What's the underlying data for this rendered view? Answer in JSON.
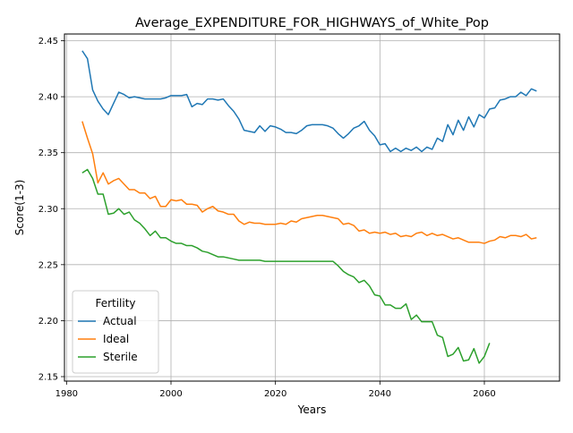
{
  "chart_data": {
    "type": "line",
    "title": "Average_EXPENDITURE_FOR_HIGHWAYS_of_White_Pop",
    "xlabel": "Years",
    "ylabel": "Score(1-3)",
    "xlim": [
      1979.6,
      2074.4
    ],
    "ylim": [
      2.146,
      2.456
    ],
    "xticks": [
      1980,
      2000,
      2020,
      2040,
      2060
    ],
    "yticks": [
      2.15,
      2.2,
      2.25,
      2.3,
      2.35,
      2.4,
      2.45
    ],
    "xtick_labels": [
      "1980",
      "2000",
      "2020",
      "2040",
      "2060"
    ],
    "ytick_labels": [
      "2.15",
      "2.20",
      "2.25",
      "2.30",
      "2.35",
      "2.40",
      "2.45"
    ],
    "grid": true,
    "legend": {
      "title": "Fertility",
      "placement": "lower-left"
    },
    "series": [
      {
        "name": "Actual",
        "color": "#1f77b4",
        "x": [
          1983,
          1984,
          1985,
          1986,
          1987,
          1988,
          1989,
          1990,
          1991,
          1992,
          1993,
          1994,
          1995,
          1996,
          1997,
          1998,
          1999,
          2000,
          2001,
          2002,
          2003,
          2004,
          2005,
          2006,
          2007,
          2008,
          2009,
          2010,
          2011,
          2012,
          2013,
          2014,
          2015,
          2016,
          2017,
          2018,
          2019,
          2020,
          2021,
          2022,
          2023,
          2024,
          2025,
          2026,
          2027,
          2028,
          2029,
          2030,
          2031,
          2032,
          2033,
          2034,
          2035,
          2036,
          2037,
          2038,
          2039,
          2040,
          2041,
          2042,
          2043,
          2044,
          2045,
          2046,
          2047,
          2048,
          2049,
          2050,
          2051,
          2052,
          2053,
          2054,
          2055,
          2056,
          2057,
          2058,
          2059,
          2060,
          2061,
          2062,
          2063,
          2064,
          2065,
          2066,
          2067,
          2068,
          2069,
          2070
        ],
        "values": [
          2.441,
          2.434,
          2.406,
          2.396,
          2.389,
          2.384,
          2.394,
          2.404,
          2.402,
          2.399,
          2.4,
          2.399,
          2.398,
          2.398,
          2.398,
          2.398,
          2.399,
          2.401,
          2.401,
          2.401,
          2.402,
          2.391,
          2.394,
          2.393,
          2.398,
          2.398,
          2.397,
          2.398,
          2.392,
          2.387,
          2.38,
          2.37,
          2.369,
          2.368,
          2.374,
          2.369,
          2.374,
          2.373,
          2.371,
          2.368,
          2.368,
          2.367,
          2.37,
          2.374,
          2.375,
          2.375,
          2.375,
          2.374,
          2.372,
          2.367,
          2.363,
          2.367,
          2.372,
          2.374,
          2.378,
          2.37,
          2.365,
          2.357,
          2.358,
          2.351,
          2.354,
          2.351,
          2.354,
          2.352,
          2.355,
          2.351,
          2.355,
          2.353,
          2.363,
          2.36,
          2.375,
          2.366,
          2.379,
          2.37,
          2.382,
          2.373,
          2.384,
          2.381,
          2.389,
          2.39,
          2.397,
          2.398,
          2.4,
          2.4,
          2.404,
          2.401,
          2.407,
          2.405
        ]
      },
      {
        "name": "Ideal",
        "color": "#ff7f0e",
        "x": [
          1983,
          1984,
          1985,
          1986,
          1987,
          1988,
          1989,
          1990,
          1991,
          1992,
          1993,
          1994,
          1995,
          1996,
          1997,
          1998,
          1999,
          2000,
          2001,
          2002,
          2003,
          2004,
          2005,
          2006,
          2007,
          2008,
          2009,
          2010,
          2011,
          2012,
          2013,
          2014,
          2015,
          2016,
          2017,
          2018,
          2019,
          2020,
          2021,
          2022,
          2023,
          2024,
          2025,
          2026,
          2027,
          2028,
          2029,
          2030,
          2031,
          2032,
          2033,
          2034,
          2035,
          2036,
          2037,
          2038,
          2039,
          2040,
          2041,
          2042,
          2043,
          2044,
          2045,
          2046,
          2047,
          2048,
          2049,
          2050,
          2051,
          2052,
          2053,
          2054,
          2055,
          2056,
          2057,
          2058,
          2059,
          2060,
          2061,
          2062,
          2063,
          2064,
          2065,
          2066,
          2067,
          2068,
          2069,
          2070
        ],
        "values": [
          2.378,
          2.363,
          2.349,
          2.323,
          2.332,
          2.322,
          2.325,
          2.327,
          2.322,
          2.317,
          2.317,
          2.314,
          2.314,
          2.309,
          2.311,
          2.302,
          2.302,
          2.308,
          2.307,
          2.308,
          2.304,
          2.304,
          2.303,
          2.297,
          2.3,
          2.302,
          2.298,
          2.297,
          2.295,
          2.295,
          2.289,
          2.286,
          2.288,
          2.287,
          2.287,
          2.286,
          2.286,
          2.286,
          2.287,
          2.286,
          2.289,
          2.288,
          2.291,
          2.292,
          2.293,
          2.294,
          2.294,
          2.293,
          2.292,
          2.291,
          2.286,
          2.287,
          2.285,
          2.28,
          2.281,
          2.278,
          2.279,
          2.278,
          2.279,
          2.277,
          2.278,
          2.275,
          2.276,
          2.275,
          2.278,
          2.279,
          2.276,
          2.278,
          2.276,
          2.277,
          2.275,
          2.273,
          2.274,
          2.272,
          2.27,
          2.27,
          2.27,
          2.269,
          2.271,
          2.272,
          2.275,
          2.274,
          2.276,
          2.276,
          2.275,
          2.277,
          2.273,
          2.274
        ]
      },
      {
        "name": "Sterile",
        "color": "#2ca02c",
        "x": [
          1983,
          1984,
          1985,
          1986,
          1987,
          1988,
          1989,
          1990,
          1991,
          1992,
          1993,
          1994,
          1995,
          1996,
          1997,
          1998,
          1999,
          2000,
          2001,
          2002,
          2003,
          2004,
          2005,
          2006,
          2007,
          2008,
          2009,
          2010,
          2011,
          2012,
          2013,
          2014,
          2015,
          2016,
          2017,
          2018,
          2019,
          2020,
          2021,
          2022,
          2023,
          2024,
          2025,
          2026,
          2027,
          2028,
          2029,
          2030,
          2031,
          2032,
          2033,
          2034,
          2035,
          2036,
          2037,
          2038,
          2039,
          2040,
          2041,
          2042,
          2043,
          2044,
          2045,
          2046,
          2047,
          2048,
          2049,
          2050,
          2051,
          2052,
          2053,
          2054,
          2055,
          2056,
          2057,
          2058,
          2059,
          2060,
          2061
        ],
        "values": [
          2.332,
          2.335,
          2.327,
          2.313,
          2.313,
          2.295,
          2.296,
          2.3,
          2.295,
          2.297,
          2.29,
          2.287,
          2.282,
          2.276,
          2.28,
          2.274,
          2.274,
          2.271,
          2.269,
          2.269,
          2.267,
          2.267,
          2.265,
          2.262,
          2.261,
          2.259,
          2.257,
          2.257,
          2.256,
          2.255,
          2.254,
          2.254,
          2.254,
          2.254,
          2.254,
          2.253,
          2.253,
          2.253,
          2.253,
          2.253,
          2.253,
          2.253,
          2.253,
          2.253,
          2.253,
          2.253,
          2.253,
          2.253,
          2.253,
          2.249,
          2.244,
          2.241,
          2.239,
          2.234,
          2.236,
          2.231,
          2.223,
          2.222,
          2.214,
          2.214,
          2.211,
          2.211,
          2.215,
          2.201,
          2.205,
          2.199,
          2.199,
          2.199,
          2.187,
          2.185,
          2.168,
          2.17,
          2.176,
          2.164,
          2.165,
          2.175,
          2.162,
          2.168,
          2.18
        ]
      }
    ]
  }
}
